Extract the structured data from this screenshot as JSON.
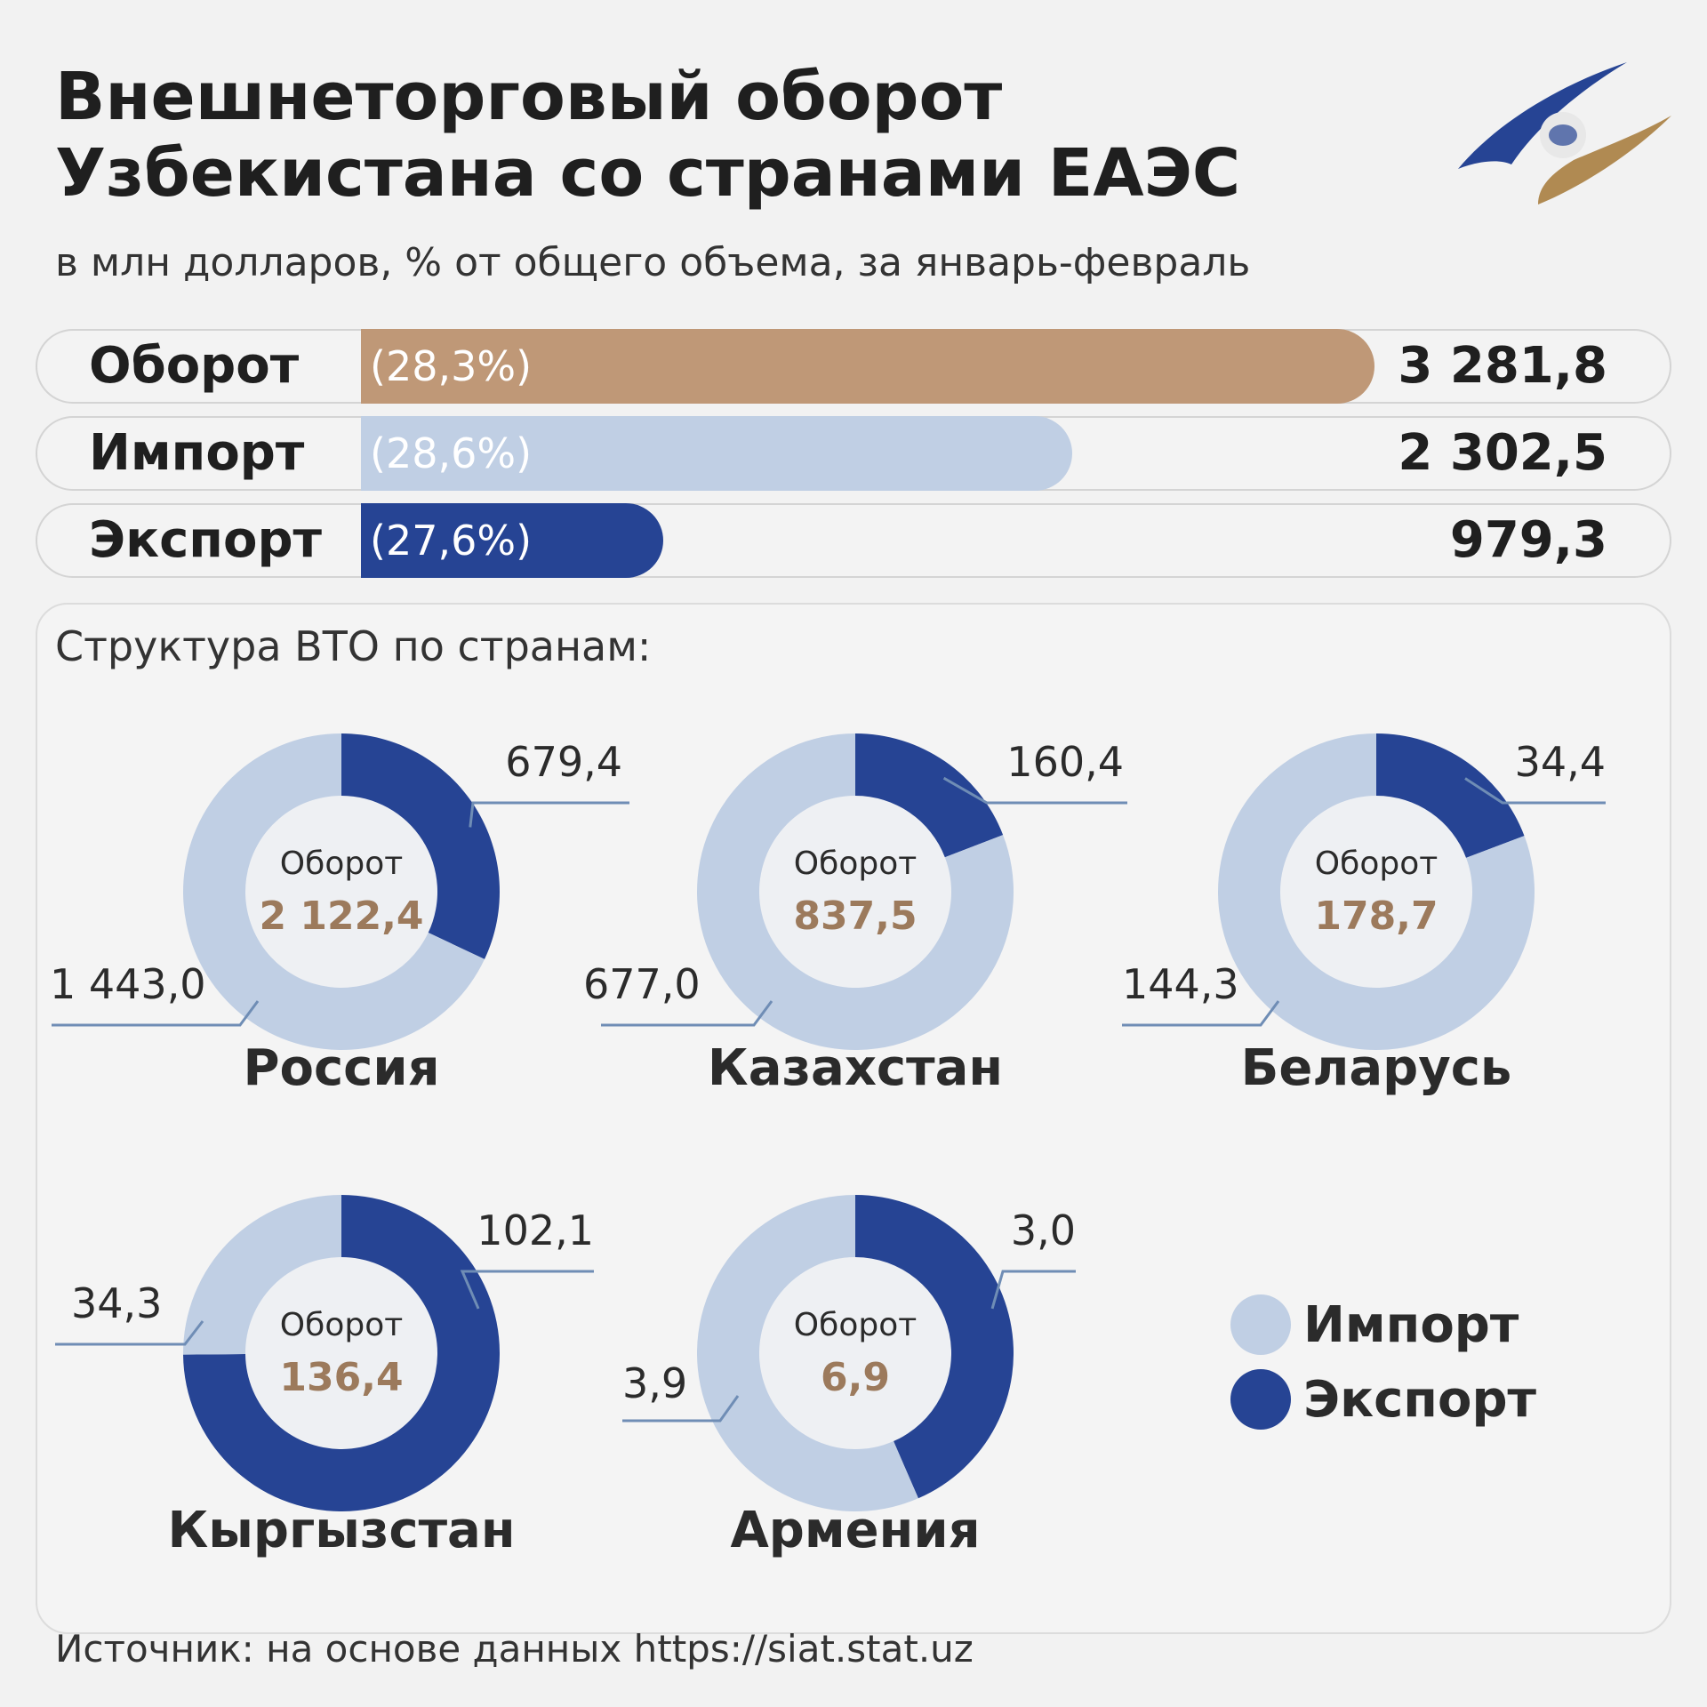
{
  "header": {
    "title_line1": "Внешнеторговый оборот",
    "title_line2": "Узбекистана со странами ЕАЭС",
    "subtitle": "в млн долларов, % от общего объема, за январь-февраль"
  },
  "colors": {
    "turnover": "#bf9877",
    "import": "#c0cfe4",
    "export": "#264494",
    "turnover_text": "#9c7a5c",
    "logo_blue": "#264494",
    "logo_gold": "#b08a52"
  },
  "summary_bars": [
    {
      "label": "Оборот",
      "percent": "(28,3%)",
      "value": "3 281,8",
      "amount": 3281.8
    },
    {
      "label": "Импорт",
      "percent": "(28,6%)",
      "value": "2 302,5",
      "amount": 2302.5
    },
    {
      "label": "Экспорт",
      "percent": "(27,6%)",
      "value": "979,3",
      "amount": 979.3
    }
  ],
  "structure": {
    "title": "Структура ВТО по странам:",
    "center_label": "Оборот"
  },
  "chart_data": {
    "type": "pie",
    "series_names": [
      "Импорт",
      "Экспорт"
    ],
    "countries": [
      {
        "name": "Россия",
        "turnover": 2122.4,
        "turnover_label": "2 122,4",
        "import": 1443.0,
        "import_label": "1 443,0",
        "export": 679.4,
        "export_label": "679,4"
      },
      {
        "name": "Казахстан",
        "turnover": 837.5,
        "turnover_label": "837,5",
        "import": 677.0,
        "import_label": "677,0",
        "export": 160.4,
        "export_label": "160,4"
      },
      {
        "name": "Беларусь",
        "turnover": 178.7,
        "turnover_label": "178,7",
        "import": 144.3,
        "import_label": "144,3",
        "export": 34.4,
        "export_label": "34,4"
      },
      {
        "name": "Кыргызстан",
        "turnover": 136.4,
        "turnover_label": "136,4",
        "import": 34.3,
        "import_label": "34,3",
        "export": 102.1,
        "export_label": "102,1"
      },
      {
        "name": "Армения",
        "turnover": 6.9,
        "turnover_label": "6,9",
        "import": 3.9,
        "import_label": "3,9",
        "export": 3.0,
        "export_label": "3,0"
      }
    ]
  },
  "legend": [
    {
      "label": "Импорт",
      "color": "#c0cfe4"
    },
    {
      "label": "Экспорт",
      "color": "#264494"
    }
  ],
  "source": "Источник: на основе данных https://siat.stat.uz"
}
